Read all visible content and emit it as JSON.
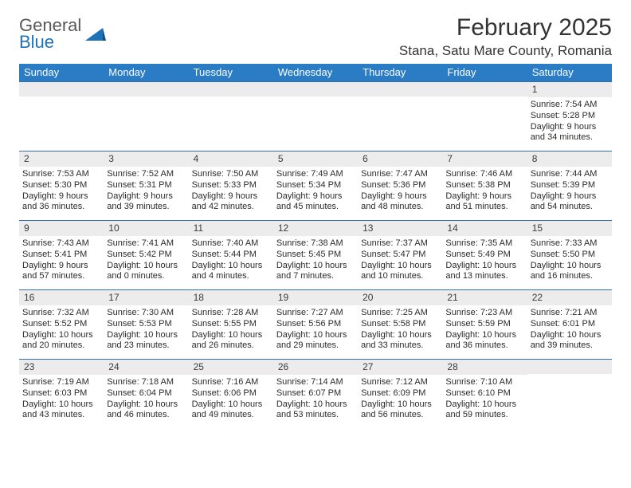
{
  "brand": {
    "name_part1": "General",
    "name_part2": "Blue"
  },
  "title": "February 2025",
  "location": "Stana, Satu Mare County, Romania",
  "colors": {
    "header_bg": "#2a7cc4",
    "header_text": "#ffffff",
    "row_border": "#3a6fa5",
    "daynum_bg": "#ececec",
    "body_text": "#2b2b2b",
    "brand_gray": "#585858",
    "brand_blue": "#1d72b8",
    "page_bg": "#ffffff"
  },
  "weekdays": [
    "Sunday",
    "Monday",
    "Tuesday",
    "Wednesday",
    "Thursday",
    "Friday",
    "Saturday"
  ],
  "weeks": [
    [
      {
        "num": "",
        "sunrise": "",
        "sunset": "",
        "daylight": ""
      },
      {
        "num": "",
        "sunrise": "",
        "sunset": "",
        "daylight": ""
      },
      {
        "num": "",
        "sunrise": "",
        "sunset": "",
        "daylight": ""
      },
      {
        "num": "",
        "sunrise": "",
        "sunset": "",
        "daylight": ""
      },
      {
        "num": "",
        "sunrise": "",
        "sunset": "",
        "daylight": ""
      },
      {
        "num": "",
        "sunrise": "",
        "sunset": "",
        "daylight": ""
      },
      {
        "num": "1",
        "sunrise": "Sunrise: 7:54 AM",
        "sunset": "Sunset: 5:28 PM",
        "daylight": "Daylight: 9 hours and 34 minutes."
      }
    ],
    [
      {
        "num": "2",
        "sunrise": "Sunrise: 7:53 AM",
        "sunset": "Sunset: 5:30 PM",
        "daylight": "Daylight: 9 hours and 36 minutes."
      },
      {
        "num": "3",
        "sunrise": "Sunrise: 7:52 AM",
        "sunset": "Sunset: 5:31 PM",
        "daylight": "Daylight: 9 hours and 39 minutes."
      },
      {
        "num": "4",
        "sunrise": "Sunrise: 7:50 AM",
        "sunset": "Sunset: 5:33 PM",
        "daylight": "Daylight: 9 hours and 42 minutes."
      },
      {
        "num": "5",
        "sunrise": "Sunrise: 7:49 AM",
        "sunset": "Sunset: 5:34 PM",
        "daylight": "Daylight: 9 hours and 45 minutes."
      },
      {
        "num": "6",
        "sunrise": "Sunrise: 7:47 AM",
        "sunset": "Sunset: 5:36 PM",
        "daylight": "Daylight: 9 hours and 48 minutes."
      },
      {
        "num": "7",
        "sunrise": "Sunrise: 7:46 AM",
        "sunset": "Sunset: 5:38 PM",
        "daylight": "Daylight: 9 hours and 51 minutes."
      },
      {
        "num": "8",
        "sunrise": "Sunrise: 7:44 AM",
        "sunset": "Sunset: 5:39 PM",
        "daylight": "Daylight: 9 hours and 54 minutes."
      }
    ],
    [
      {
        "num": "9",
        "sunrise": "Sunrise: 7:43 AM",
        "sunset": "Sunset: 5:41 PM",
        "daylight": "Daylight: 9 hours and 57 minutes."
      },
      {
        "num": "10",
        "sunrise": "Sunrise: 7:41 AM",
        "sunset": "Sunset: 5:42 PM",
        "daylight": "Daylight: 10 hours and 0 minutes."
      },
      {
        "num": "11",
        "sunrise": "Sunrise: 7:40 AM",
        "sunset": "Sunset: 5:44 PM",
        "daylight": "Daylight: 10 hours and 4 minutes."
      },
      {
        "num": "12",
        "sunrise": "Sunrise: 7:38 AM",
        "sunset": "Sunset: 5:45 PM",
        "daylight": "Daylight: 10 hours and 7 minutes."
      },
      {
        "num": "13",
        "sunrise": "Sunrise: 7:37 AM",
        "sunset": "Sunset: 5:47 PM",
        "daylight": "Daylight: 10 hours and 10 minutes."
      },
      {
        "num": "14",
        "sunrise": "Sunrise: 7:35 AM",
        "sunset": "Sunset: 5:49 PM",
        "daylight": "Daylight: 10 hours and 13 minutes."
      },
      {
        "num": "15",
        "sunrise": "Sunrise: 7:33 AM",
        "sunset": "Sunset: 5:50 PM",
        "daylight": "Daylight: 10 hours and 16 minutes."
      }
    ],
    [
      {
        "num": "16",
        "sunrise": "Sunrise: 7:32 AM",
        "sunset": "Sunset: 5:52 PM",
        "daylight": "Daylight: 10 hours and 20 minutes."
      },
      {
        "num": "17",
        "sunrise": "Sunrise: 7:30 AM",
        "sunset": "Sunset: 5:53 PM",
        "daylight": "Daylight: 10 hours and 23 minutes."
      },
      {
        "num": "18",
        "sunrise": "Sunrise: 7:28 AM",
        "sunset": "Sunset: 5:55 PM",
        "daylight": "Daylight: 10 hours and 26 minutes."
      },
      {
        "num": "19",
        "sunrise": "Sunrise: 7:27 AM",
        "sunset": "Sunset: 5:56 PM",
        "daylight": "Daylight: 10 hours and 29 minutes."
      },
      {
        "num": "20",
        "sunrise": "Sunrise: 7:25 AM",
        "sunset": "Sunset: 5:58 PM",
        "daylight": "Daylight: 10 hours and 33 minutes."
      },
      {
        "num": "21",
        "sunrise": "Sunrise: 7:23 AM",
        "sunset": "Sunset: 5:59 PM",
        "daylight": "Daylight: 10 hours and 36 minutes."
      },
      {
        "num": "22",
        "sunrise": "Sunrise: 7:21 AM",
        "sunset": "Sunset: 6:01 PM",
        "daylight": "Daylight: 10 hours and 39 minutes."
      }
    ],
    [
      {
        "num": "23",
        "sunrise": "Sunrise: 7:19 AM",
        "sunset": "Sunset: 6:03 PM",
        "daylight": "Daylight: 10 hours and 43 minutes."
      },
      {
        "num": "24",
        "sunrise": "Sunrise: 7:18 AM",
        "sunset": "Sunset: 6:04 PM",
        "daylight": "Daylight: 10 hours and 46 minutes."
      },
      {
        "num": "25",
        "sunrise": "Sunrise: 7:16 AM",
        "sunset": "Sunset: 6:06 PM",
        "daylight": "Daylight: 10 hours and 49 minutes."
      },
      {
        "num": "26",
        "sunrise": "Sunrise: 7:14 AM",
        "sunset": "Sunset: 6:07 PM",
        "daylight": "Daylight: 10 hours and 53 minutes."
      },
      {
        "num": "27",
        "sunrise": "Sunrise: 7:12 AM",
        "sunset": "Sunset: 6:09 PM",
        "daylight": "Daylight: 10 hours and 56 minutes."
      },
      {
        "num": "28",
        "sunrise": "Sunrise: 7:10 AM",
        "sunset": "Sunset: 6:10 PM",
        "daylight": "Daylight: 10 hours and 59 minutes."
      },
      {
        "num": "",
        "sunrise": "",
        "sunset": "",
        "daylight": ""
      }
    ]
  ]
}
